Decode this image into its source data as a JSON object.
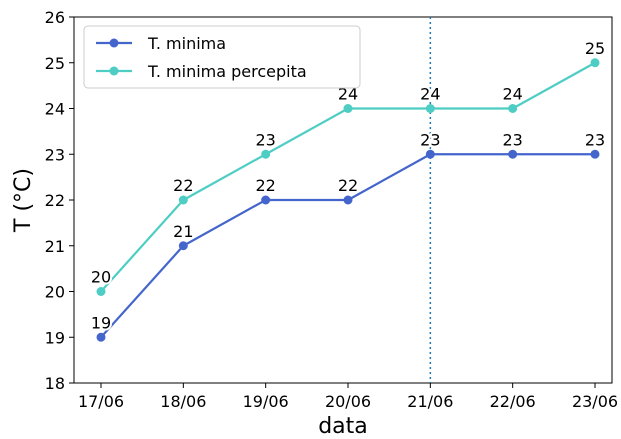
{
  "chart_data": {
    "type": "line",
    "categories": [
      "17/06",
      "18/06",
      "19/06",
      "20/06",
      "21/06",
      "22/06",
      "23/06"
    ],
    "series": [
      {
        "name": "T. minima",
        "values": [
          19,
          21,
          22,
          22,
          23,
          23,
          23
        ],
        "color": "#4466cc"
      },
      {
        "name": "T. minima percepita",
        "values": [
          20,
          22,
          23,
          24,
          24,
          24,
          25
        ],
        "color": "#4ecdc4"
      }
    ],
    "xlabel": "data",
    "ylabel": "T (°C)",
    "ylim": [
      18,
      26
    ],
    "yticks": [
      18,
      19,
      20,
      21,
      22,
      23,
      24,
      25,
      26
    ],
    "vline": {
      "x": "21/06",
      "style": "dotted",
      "color": "#1f77b4"
    },
    "legend": "top-left",
    "grid": false
  }
}
